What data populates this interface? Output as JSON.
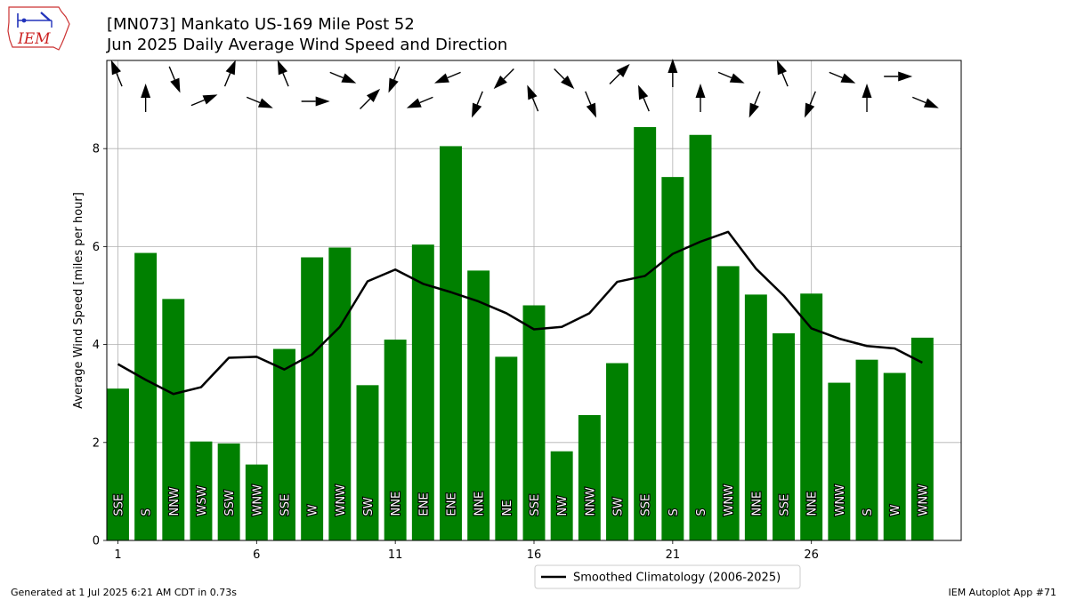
{
  "header": {
    "title_line1": "[MN073] Mankato US-169 Mile Post 52",
    "title_line2": "Jun 2025 Daily Average Wind Speed and Direction"
  },
  "logo": {
    "text": "IEM",
    "color": "#cc2222",
    "icon": "iowa-state-outline-icon"
  },
  "footer": {
    "generated": "Generated at 1 Jul 2025 6:21 AM CDT in 0.73s",
    "app": "IEM Autoplot App #71"
  },
  "colors": {
    "bar": "#008000",
    "climo_line": "#000000",
    "grid": "#b0b0b0"
  },
  "chart_data": {
    "type": "bar",
    "ylabel": "Average Wind Speed [miles per hour]",
    "xlabel": "",
    "ylim": [
      0,
      9.8
    ],
    "xlim": [
      0.6,
      31.4
    ],
    "xticks": [
      1,
      6,
      11,
      16,
      21,
      26
    ],
    "yticks": [
      0,
      2,
      4,
      6,
      8
    ],
    "grid": true,
    "legend_position": "below",
    "days": [
      1,
      2,
      3,
      4,
      5,
      6,
      7,
      8,
      9,
      10,
      11,
      12,
      13,
      14,
      15,
      16,
      17,
      18,
      19,
      20,
      21,
      22,
      23,
      24,
      25,
      26,
      27,
      28,
      29,
      30
    ],
    "series": [
      {
        "name": "Daily Average Wind Speed",
        "values": [
          3.1,
          5.87,
          4.93,
          2.02,
          1.98,
          1.55,
          3.91,
          5.78,
          5.98,
          3.17,
          4.1,
          6.04,
          8.05,
          5.51,
          3.75,
          4.8,
          1.82,
          2.56,
          3.62,
          8.44,
          7.42,
          8.28,
          5.6,
          5.02,
          4.23,
          5.04,
          3.22,
          3.69,
          3.42,
          4.14
        ]
      },
      {
        "name": "Smoothed Climatology (2006-2025)",
        "values": [
          3.6,
          3.28,
          2.99,
          3.13,
          3.73,
          3.75,
          3.49,
          3.8,
          4.36,
          5.29,
          5.53,
          5.24,
          5.07,
          4.88,
          4.64,
          4.31,
          4.36,
          4.64,
          5.28,
          5.4,
          5.85,
          6.1,
          6.3,
          5.55,
          5.0,
          4.33,
          4.12,
          3.97,
          3.92,
          3.63
        ]
      }
    ],
    "direction_labels": [
      "SSE",
      "S",
      "NNW",
      "WSW",
      "SSW",
      "WNW",
      "SSE",
      "W",
      "WNW",
      "SW",
      "NNE",
      "ENE",
      "ENE",
      "NNE",
      "NE",
      "SSE",
      "NW",
      "NNW",
      "SW",
      "SSE",
      "S",
      "S",
      "WNW",
      "NNE",
      "SSE",
      "NNE",
      "WNW",
      "S",
      "W",
      "WNW"
    ],
    "arrow_directions_deg": [
      157.5,
      180,
      337.5,
      247.5,
      202.5,
      292.5,
      157.5,
      270,
      292.5,
      225,
      22.5,
      67.5,
      67.5,
      22.5,
      45,
      157.5,
      315,
      337.5,
      225,
      157.5,
      180,
      180,
      292.5,
      22.5,
      157.5,
      22.5,
      292.5,
      180,
      270,
      292.5
    ]
  }
}
